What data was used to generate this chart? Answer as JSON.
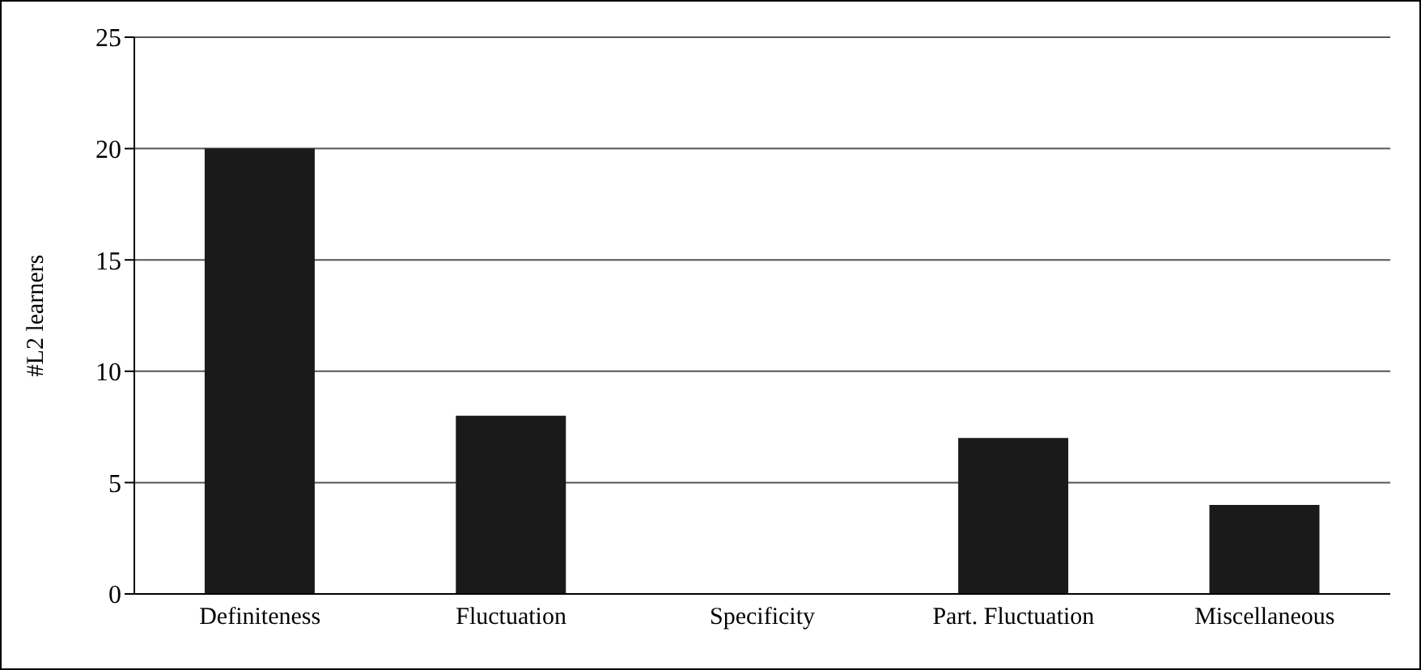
{
  "chart_data": {
    "type": "bar",
    "ylabel": "#L2 learners",
    "categories": [
      "Definiteness",
      "Fluctuation",
      "Specificity",
      "Part. Fluctuation",
      "Miscellaneous"
    ],
    "values": [
      20,
      8,
      0,
      7,
      4
    ],
    "color": "#1a1a1a",
    "ylim": [
      0,
      25
    ],
    "yticks": [
      0,
      5,
      10,
      15,
      20,
      25
    ],
    "grid": "y"
  }
}
